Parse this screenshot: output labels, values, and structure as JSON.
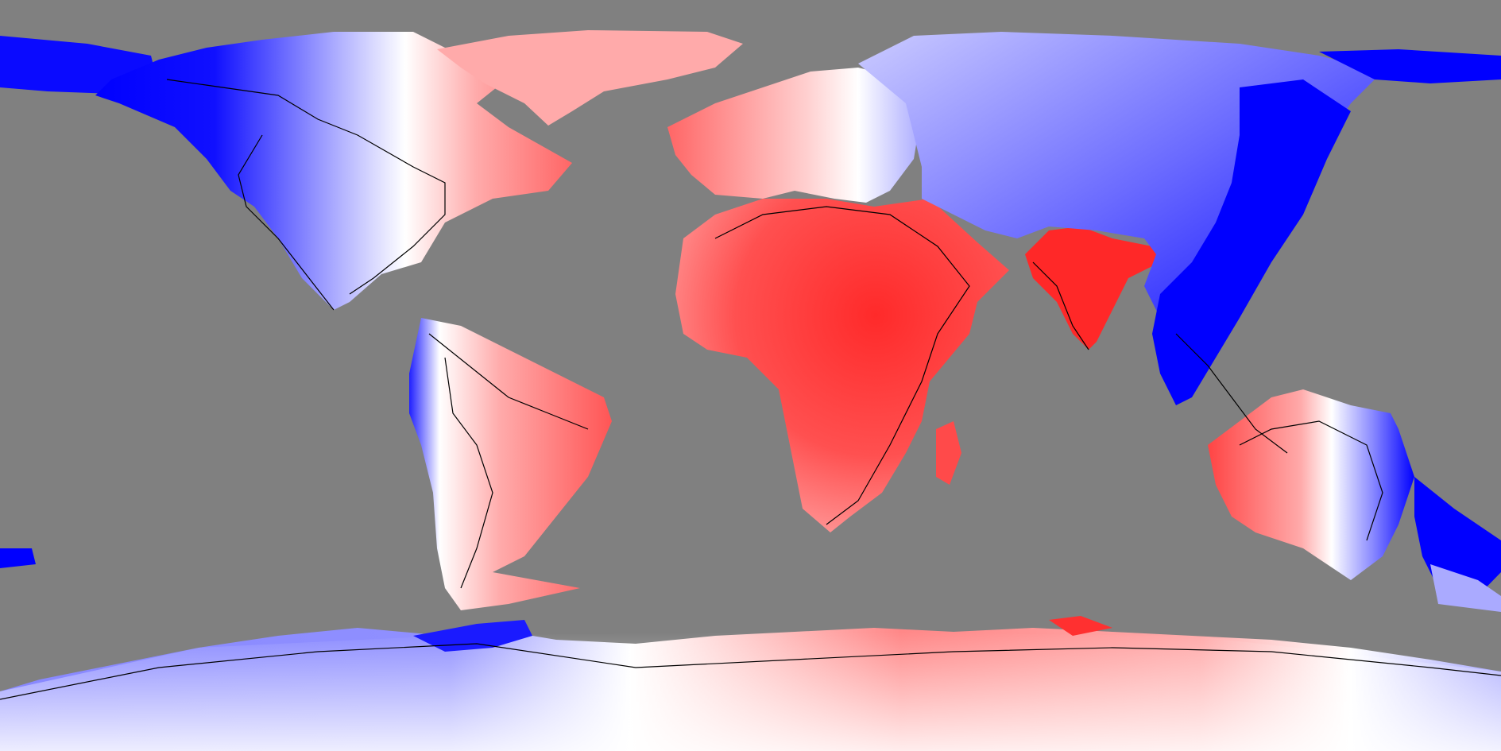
{
  "map": {
    "projection": "equirectangular",
    "colors": {
      "ocean": "#808080",
      "coastline": "#000000",
      "strong_negative": "#0000ff",
      "weak_negative": "#ccccff",
      "neutral": "#ffffff",
      "weak_positive": "#ffcccc",
      "strong_positive": "#ff2a2a"
    },
    "regions": [
      {
        "name": "north-america-west",
        "level": "strong-negative"
      },
      {
        "name": "north-america-east",
        "level": "weak-positive"
      },
      {
        "name": "greenland",
        "level": "weak-positive"
      },
      {
        "name": "south-america-west",
        "level": "strong-negative"
      },
      {
        "name": "south-america-east",
        "level": "positive"
      },
      {
        "name": "europe",
        "level": "positive"
      },
      {
        "name": "africa",
        "level": "strong-positive"
      },
      {
        "name": "arabia",
        "level": "strong-positive"
      },
      {
        "name": "india",
        "level": "strong-positive"
      },
      {
        "name": "siberia",
        "level": "weak-negative"
      },
      {
        "name": "east-asia",
        "level": "strong-negative"
      },
      {
        "name": "australia-west",
        "level": "positive"
      },
      {
        "name": "australia-east",
        "level": "strong-negative"
      },
      {
        "name": "antarctica-west",
        "level": "negative"
      },
      {
        "name": "antarctica-east",
        "level": "positive"
      }
    ]
  }
}
